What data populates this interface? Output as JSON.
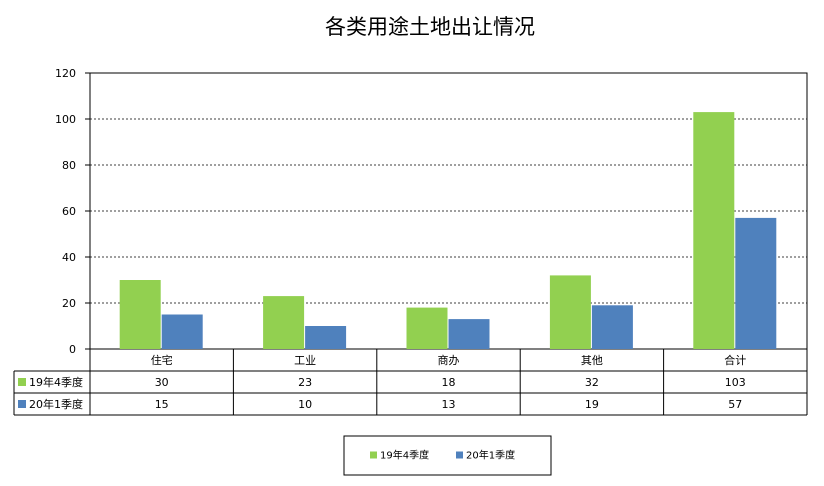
{
  "chart_data": {
    "type": "bar",
    "title": "各类用途土地出让情况",
    "categories": [
      "住宅",
      "工业",
      "商办",
      "其他",
      "合计"
    ],
    "series": [
      {
        "name": "19年4季度",
        "values": [
          30,
          23,
          18,
          32,
          103
        ],
        "color": "#92D050"
      },
      {
        "name": "20年1季度",
        "values": [
          15,
          10,
          13,
          19,
          57
        ],
        "color": "#4F81BD"
      }
    ],
    "ylim": [
      0,
      120
    ],
    "yticks": [
      0,
      20,
      40,
      60,
      80,
      100,
      120
    ],
    "grid": true,
    "data_table": true,
    "legend_position": "bottom"
  }
}
